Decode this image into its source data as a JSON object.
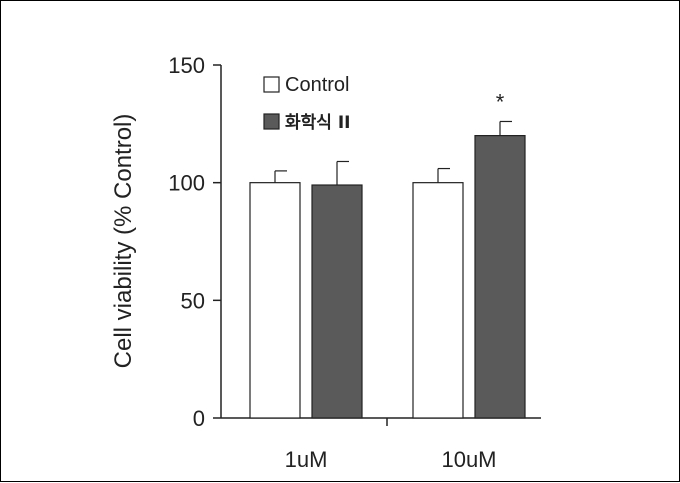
{
  "chart_data": {
    "type": "bar",
    "title": "",
    "xlabel": "",
    "ylabel": "Cell viability  (% Control)",
    "ylim": [
      0,
      150
    ],
    "yticks": [
      0,
      50,
      100,
      150
    ],
    "categories": [
      "1uM",
      "10uM"
    ],
    "series": [
      {
        "name": "Control",
        "values": [
          100,
          100
        ],
        "errors": [
          5,
          6
        ],
        "color": "#ffffff",
        "stroke": "#222222"
      },
      {
        "name": "화학식 II",
        "values": [
          99,
          120
        ],
        "errors": [
          10,
          6
        ],
        "color": "#5a5a5a",
        "stroke": "#222222"
      }
    ],
    "annotations": [
      {
        "category": "10uM",
        "series": "화학식 II",
        "text": "*"
      }
    ],
    "legend_position": "top-left",
    "grid": false
  }
}
